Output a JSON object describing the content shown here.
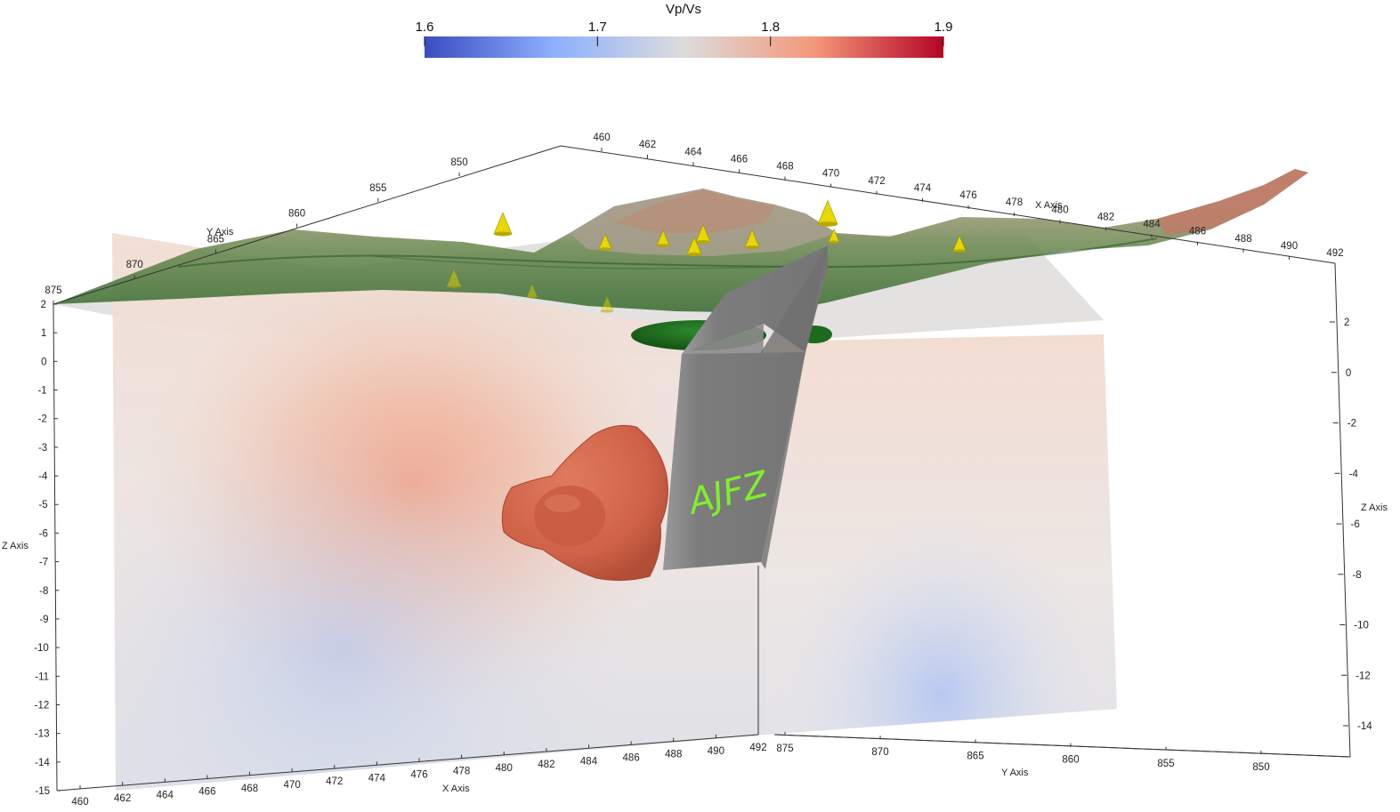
{
  "colorbar": {
    "title": "Vp/Vs",
    "ticks": [
      "1.6",
      "1.7",
      "1.8",
      "1.9"
    ],
    "range": [
      1.6,
      1.9
    ],
    "colors": [
      "#3b4cc0",
      "#8db0fe",
      "#dddcdc",
      "#f4987a",
      "#b40426"
    ]
  },
  "axes": {
    "x_title": "X Axis",
    "y_title": "Y Axis",
    "z_title": "Z Axis",
    "x_bottom_ticks": [
      "460",
      "462",
      "464",
      "466",
      "468",
      "470",
      "472",
      "474",
      "476",
      "478",
      "480",
      "482",
      "484",
      "486",
      "488",
      "490",
      "492"
    ],
    "x_top_ticks": [
      "460",
      "462",
      "464",
      "466",
      "468",
      "470",
      "472",
      "474",
      "476",
      "478",
      "480",
      "482",
      "484",
      "486",
      "488",
      "490",
      "492"
    ],
    "y_bottom_ticks": [
      "875",
      "870",
      "865",
      "860",
      "855",
      "850"
    ],
    "y_top_ticks": [
      "850",
      "855",
      "860",
      "865",
      "870",
      "875"
    ],
    "z_left_ticks": [
      "2",
      "1",
      "0",
      "-1",
      "-2",
      "-3",
      "-4",
      "-5",
      "-6",
      "-7",
      "-8",
      "-9",
      "-10",
      "-11",
      "-12",
      "-13",
      "-14",
      "-15"
    ],
    "z_right_ticks": [
      "2",
      "0",
      "-2",
      "-4",
      "-6",
      "-8",
      "-10",
      "-12",
      "-14"
    ]
  },
  "annotations": {
    "fault_label": "AJFZ"
  },
  "colors": {
    "anomaly_body": "#d4664a",
    "fault_plane": "#7a7a7a",
    "lens_body": "#1f6a1f",
    "station_marker": "#e6d800",
    "topography_low": "#3f7a3a",
    "topography_high": "#c07a60"
  }
}
